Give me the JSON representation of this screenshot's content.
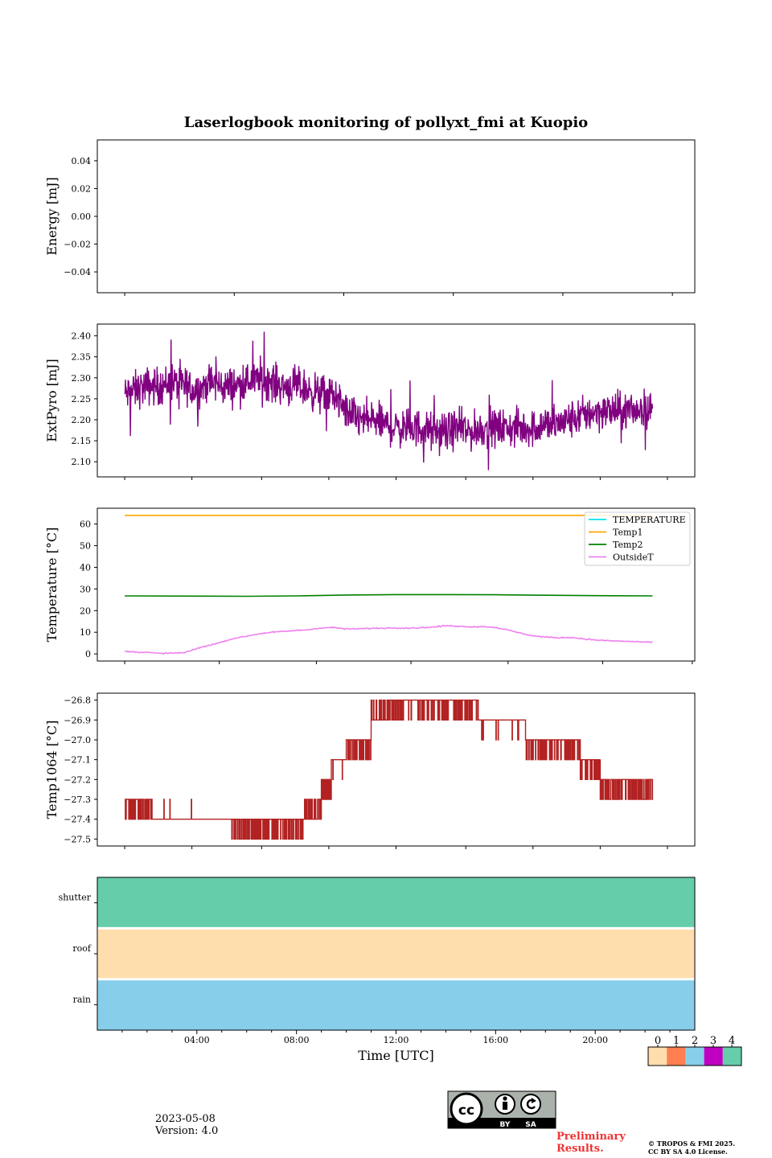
{
  "chart_data": [
    {
      "type": "line",
      "title": "Laserlogbook monitoring of pollyxt_fmi at Kuopio",
      "ylabel": "Energy [mJ]",
      "ylim": [
        -0.055,
        0.055
      ],
      "yticks": [
        -0.04,
        -0.02,
        0.0,
        0.02,
        0.04
      ],
      "ytick_labels": [
        "−0.04",
        "−0.02",
        "0.00",
        "0.02",
        "0.04"
      ],
      "series": []
    },
    {
      "type": "line",
      "ylabel": "ExtPyro [mJ]",
      "ylim": [
        2.064,
        2.428
      ],
      "yticks": [
        2.1,
        2.15,
        2.2,
        2.25,
        2.3,
        2.35,
        2.4
      ],
      "ytick_labels": [
        "2.10",
        "2.15",
        "2.20",
        "2.25",
        "2.30",
        "2.35",
        "2.40"
      ],
      "series": [
        {
          "name": "ExtPyro",
          "color": "#800080",
          "x": [
            1.1,
            1.5,
            2.0,
            2.5,
            3.0,
            3.5,
            4.0,
            4.5,
            5.0,
            5.5,
            6.0,
            6.5,
            7.0,
            7.5,
            8.0,
            8.5,
            9.0,
            9.5,
            10.0,
            10.5,
            11.0,
            11.5,
            12.0,
            12.5,
            13.0,
            13.5,
            14.0,
            14.5,
            15.0,
            15.5,
            16.0,
            16.5,
            17.0,
            17.5,
            18.0,
            18.5,
            19.0,
            19.5,
            20.0,
            20.5,
            21.0,
            21.5,
            22.0,
            22.3
          ],
          "values": [
            2.26,
            2.27,
            2.28,
            2.28,
            2.29,
            2.28,
            2.27,
            2.29,
            2.28,
            2.28,
            2.29,
            2.3,
            2.29,
            2.28,
            2.28,
            2.27,
            2.26,
            2.26,
            2.22,
            2.2,
            2.2,
            2.19,
            2.18,
            2.18,
            2.18,
            2.17,
            2.17,
            2.18,
            2.17,
            2.18,
            2.18,
            2.18,
            2.18,
            2.18,
            2.19,
            2.19,
            2.2,
            2.21,
            2.22,
            2.22,
            2.22,
            2.22,
            2.23,
            2.22
          ],
          "noise": 0.028,
          "max": 2.41,
          "min": 2.08
        }
      ]
    },
    {
      "type": "line",
      "ylabel": "Temperature [°C]",
      "ylim": [
        -3.3,
        67.3
      ],
      "yticks": [
        0,
        10,
        20,
        30,
        40,
        50,
        60
      ],
      "ytick_labels": [
        "0",
        "10",
        "20",
        "30",
        "40",
        "50",
        "60"
      ],
      "legend_position": "top-right",
      "series": [
        {
          "name": "TEMPERATURE",
          "color": "#00e5ee",
          "x": [],
          "values": []
        },
        {
          "name": "Temp1",
          "color": "#ffa500",
          "x": [
            1.1,
            22.3
          ],
          "values": [
            64,
            64
          ]
        },
        {
          "name": "Temp2",
          "color": "#008000",
          "x": [
            1.1,
            4,
            6,
            8,
            10,
            12,
            14,
            16,
            18,
            20,
            22.3
          ],
          "values": [
            26.8,
            26.7,
            26.6,
            26.8,
            27.2,
            27.4,
            27.4,
            27.3,
            27.1,
            26.9,
            26.8
          ]
        },
        {
          "name": "OutsideT",
          "color": "#ee82ee",
          "x": [
            1.1,
            1.5,
            2.0,
            2.5,
            3.0,
            3.5,
            4.0,
            4.5,
            5.0,
            5.5,
            6.0,
            6.5,
            7.0,
            7.5,
            8.0,
            8.5,
            9.0,
            9.5,
            10.0,
            10.5,
            11.0,
            11.5,
            12.0,
            12.5,
            13.0,
            13.5,
            14.0,
            14.5,
            15.0,
            15.5,
            16.0,
            16.5,
            17.0,
            17.5,
            18.0,
            18.5,
            19.0,
            19.5,
            20.0,
            20.5,
            21.0,
            21.5,
            22.0,
            22.3
          ],
          "values": [
            1.2,
            0.9,
            0.7,
            0.2,
            0.4,
            0.5,
            2.5,
            4.0,
            5.5,
            7.2,
            8.2,
            9.3,
            10.0,
            10.4,
            10.8,
            11.2,
            12.0,
            12.2,
            11.5,
            11.6,
            11.8,
            11.9,
            12.0,
            11.9,
            12.1,
            12.4,
            13.0,
            12.8,
            12.5,
            12.6,
            12.2,
            11.0,
            9.6,
            8.3,
            7.8,
            7.4,
            7.6,
            7.0,
            6.4,
            6.1,
            5.9,
            5.7,
            5.5,
            5.4
          ]
        }
      ]
    },
    {
      "type": "line",
      "ylabel": "Temp1064 [°C]",
      "ylim": [
        -27.535,
        -26.765
      ],
      "yticks": [
        -27.5,
        -27.4,
        -27.3,
        -27.2,
        -27.1,
        -27.0,
        -26.9,
        -26.8
      ],
      "ytick_labels": [
        "−27.5",
        "−27.4",
        "−27.3",
        "−27.2",
        "−27.1",
        "−27.0",
        "−26.9",
        "−26.8"
      ],
      "series": [
        {
          "name": "Temp1064",
          "color": "#b22222",
          "segments": [
            {
              "x": [
                1.1,
                2.2
              ],
              "base": -27.3,
              "alt": -27.4,
              "flicker": 0.45
            },
            {
              "x": [
                2.2,
                5.4
              ],
              "base": -27.4,
              "alt": -27.3,
              "flicker": 0.02
            },
            {
              "x": [
                5.4,
                8.3
              ],
              "base": -27.4,
              "alt": -27.5,
              "flicker": 0.35
            },
            {
              "x": [
                8.3,
                9.0
              ],
              "base": -27.4,
              "alt": -27.3,
              "flicker": 0.4
            },
            {
              "x": [
                9.0,
                9.4
              ],
              "base": -27.3,
              "alt": -27.2,
              "flicker": 0.5
            },
            {
              "x": [
                9.4,
                10.0
              ],
              "base": -27.1,
              "alt": -27.2,
              "flicker": 0.1
            },
            {
              "x": [
                10.0,
                11.0
              ],
              "base": -27.0,
              "alt": -27.1,
              "flicker": 0.35
            },
            {
              "x": [
                11.0,
                12.0
              ],
              "base": -26.9,
              "alt": -26.8,
              "flicker": 0.3
            },
            {
              "x": [
                12.0,
                15.3
              ],
              "base": -26.8,
              "alt": -26.9,
              "flicker": 0.2
            },
            {
              "x": [
                15.3,
                17.2
              ],
              "base": -26.9,
              "alt": -27.0,
              "flicker": 0.1
            },
            {
              "x": [
                17.2,
                19.4
              ],
              "base": -27.0,
              "alt": -27.1,
              "flicker": 0.25
            },
            {
              "x": [
                19.4,
                20.2
              ],
              "base": -27.1,
              "alt": -27.2,
              "flicker": 0.3
            },
            {
              "x": [
                20.2,
                22.3
              ],
              "base": -27.2,
              "alt": -27.3,
              "flicker": 0.45
            }
          ]
        }
      ]
    },
    {
      "type": "heatmap",
      "rows": [
        "shutter",
        "roof",
        "rain"
      ],
      "row_values": [
        4,
        0,
        2
      ],
      "xlabel": "Time [UTC]",
      "xlim": [
        0,
        24
      ],
      "xticks": [
        4,
        8,
        12,
        16,
        20
      ],
      "xtick_labels": [
        "04:00",
        "08:00",
        "12:00",
        "16:00",
        "20:00"
      ],
      "colorbar": {
        "labels": [
          "0",
          "1",
          "2",
          "3",
          "4"
        ],
        "colors": [
          "#ffdead",
          "#ff7f50",
          "#87ceeb",
          "#c000c0",
          "#66cdaa"
        ]
      }
    }
  ],
  "footer": {
    "date": "2023-05-08",
    "version": "Version: 4.0",
    "preliminary_line1": "Preliminary",
    "preliminary_line2": "Results.",
    "copyright_line1": "© TROPOS & FMI 2025.",
    "copyright_line2": "CC BY SA 4.0 License.",
    "license_by": "BY",
    "license_sa": "SA"
  }
}
